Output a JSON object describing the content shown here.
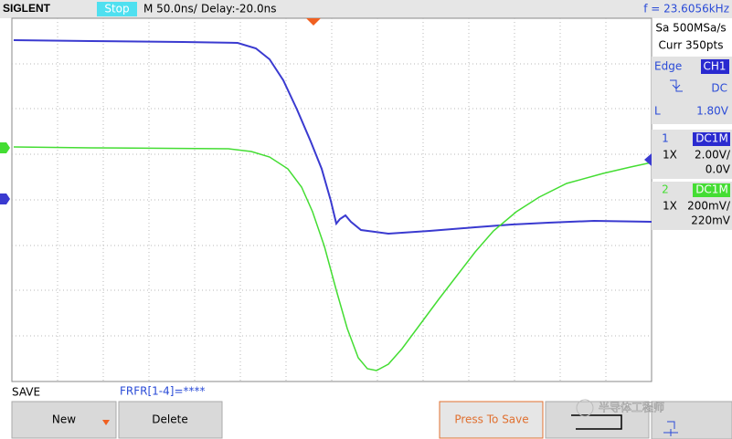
{
  "header": {
    "brand": "SIGLENT",
    "status": "Stop",
    "timebase": "M 50.0ns/",
    "delay": "Delay:-20.0ns",
    "frequency": "f = 23.6056kHz"
  },
  "acquisition": {
    "sample_rate": "Sa 500MSa/s",
    "memory": "Curr 350pts"
  },
  "trigger": {
    "type": "Edge",
    "source": "CH1",
    "coupling": "DC",
    "level_name": "L",
    "level": "1.80V"
  },
  "channels": [
    {
      "number": "1",
      "coupling": "DC1M",
      "probe": "1X",
      "scale": "2.00V/",
      "offset": "0.0V"
    },
    {
      "number": "2",
      "coupling": "DC1M",
      "probe": "1X",
      "scale": "200mV/",
      "offset": "220mV"
    }
  ],
  "menu": {
    "title": "SAVE",
    "filename": "FRFR[1-4]=****",
    "buttons": [
      "New",
      "Delete",
      "Press To Save"
    ]
  },
  "watermark": "半导体工程师"
}
